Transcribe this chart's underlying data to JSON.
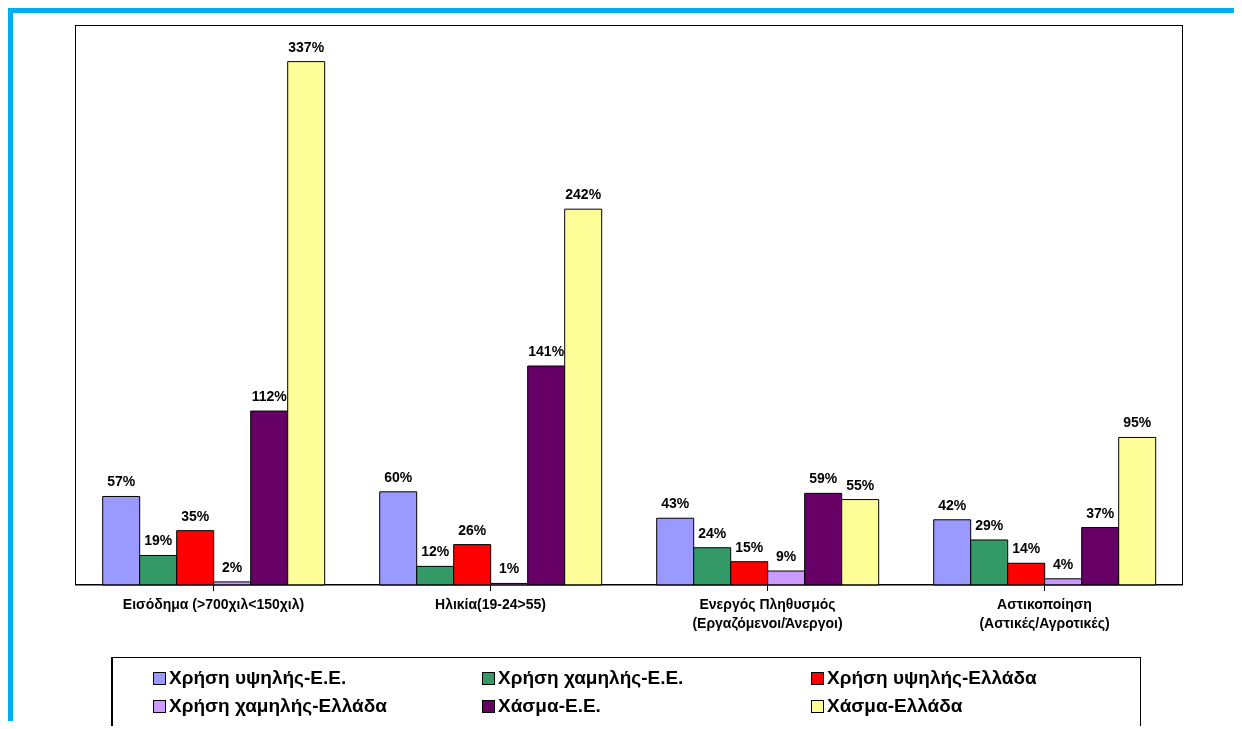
{
  "chart_data": {
    "type": "bar",
    "categories": [
      "Εισόδημα (>700χιλ<150χιλ)",
      "Ηλικία(19-24>55)",
      "Ενεργός Πληθυσμός\n(Εργαζόμενοι/Άνεργοι)",
      "Αστικοποίηση\n(Αστικές/Αγροτικές)"
    ],
    "series": [
      {
        "name": "Χρήση υψηλής-Ε.Ε.",
        "color": "#9999ff",
        "values": [
          57,
          60,
          43,
          42
        ],
        "value_labels": [
          "57%",
          "60%",
          "43%",
          "42%"
        ]
      },
      {
        "name": "Χρήση χαμηλής-Ε.Ε.",
        "color": "#339966",
        "values": [
          19,
          12,
          24,
          29
        ],
        "value_labels": [
          "19%",
          "12%",
          "24%",
          "29%"
        ]
      },
      {
        "name": "Χρήση υψηλής-Ελλάδα",
        "color": "#ff0000",
        "values": [
          35,
          26,
          15,
          14
        ],
        "value_labels": [
          "35%",
          "26%",
          "15%",
          "14%"
        ]
      },
      {
        "name": "Χρήση χαμηλής-Ελλάδα",
        "color": "#cc99ff",
        "values": [
          2,
          1,
          9,
          4
        ],
        "value_labels": [
          "2%",
          "1%",
          "9%",
          "4%"
        ]
      },
      {
        "name": "Χάσμα-Ε.Ε.",
        "color": "#660066",
        "values": [
          112,
          141,
          59,
          37
        ],
        "value_labels": [
          "112%",
          "141%",
          "59%",
          "37%"
        ]
      },
      {
        "name": "Χάσμα-Ελλάδα",
        "color": "#ffff99",
        "values": [
          337,
          242,
          55,
          95
        ],
        "value_labels": [
          "337%",
          "242%",
          "55%",
          "95%"
        ]
      }
    ],
    "legend": "bottom",
    "grid": false
  }
}
